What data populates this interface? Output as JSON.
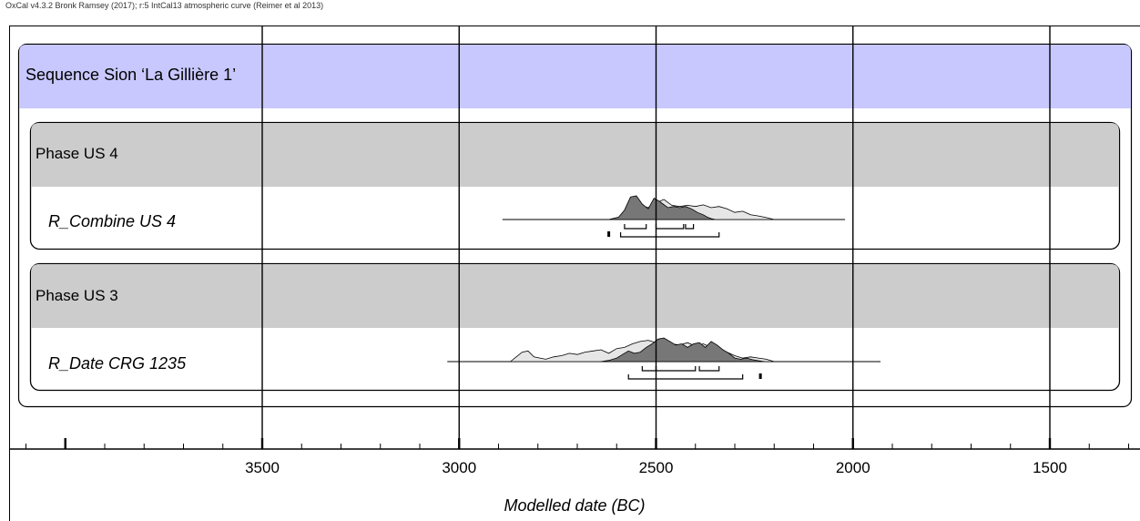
{
  "header_note": "OxCal v4.3.2 Bronk Ramsey (2017); r:5 IntCal13 atmospheric curve (Reimer et al 2013)",
  "chart_data": {
    "type": "ridge",
    "xlabel": "Modelled date (BC)",
    "xaxis_reversed": true,
    "xlim": [
      4100,
      1300
    ],
    "major_ticks": [
      3500,
      3000,
      2500,
      2000,
      1500
    ],
    "tick_labels": [
      "3500",
      "3000",
      "2500",
      "2000",
      "1500"
    ],
    "minor_tick_step": 100,
    "sequence": {
      "label": "Sequence Sion ‘La Gillière 1’",
      "color": "#c8c8ff"
    },
    "phases": [
      {
        "label": "Phase US 4",
        "color": "#cccccc",
        "item": {
          "label": "R_Combine US 4",
          "line_range": [
            2890,
            2020
          ],
          "prior": {
            "x": [
              2620,
              2595,
              2575,
              2560,
              2540,
              2520,
              2500,
              2480,
              2460,
              2440,
              2420,
              2400,
              2380,
              2360,
              2340,
              2320,
              2300,
              2280,
              2260,
              2240,
              2220,
              2200
            ],
            "y": [
              0,
              0.05,
              0.45,
              0.85,
              0.6,
              0.5,
              0.7,
              0.85,
              0.6,
              0.55,
              0.6,
              0.55,
              0.62,
              0.5,
              0.55,
              0.45,
              0.3,
              0.35,
              0.2,
              0.15,
              0.08,
              0
            ]
          },
          "posterior": {
            "x": [
              2620,
              2595,
              2580,
              2565,
              2550,
              2535,
              2520,
              2505,
              2490,
              2470,
              2455,
              2440,
              2425,
              2410,
              2395,
              2380,
              2370,
              2360,
              2350
            ],
            "y": [
              0,
              0.1,
              0.4,
              0.95,
              1.0,
              0.65,
              0.45,
              0.9,
              0.75,
              0.5,
              0.55,
              0.5,
              0.55,
              0.45,
              0.3,
              0.2,
              0.1,
              0.04,
              0
            ]
          },
          "ranges_68": [
            [
              2580,
              2525
            ],
            [
              2500,
              2430
            ],
            [
              2425,
              2405
            ]
          ],
          "ranges_95": [
            [
              2625,
              2615
            ],
            [
              2590,
              2340
            ]
          ]
        }
      },
      {
        "label": "Phase US 3",
        "color": "#cccccc",
        "item": {
          "label": "R_Date CRG 1235",
          "line_range": [
            3030,
            1930
          ],
          "prior": {
            "x": [
              2870,
              2855,
              2840,
              2825,
              2810,
              2795,
              2780,
              2760,
              2740,
              2720,
              2700,
              2680,
              2660,
              2640,
              2620,
              2600,
              2580,
              2560,
              2540,
              2520,
              2500,
              2480,
              2460,
              2440,
              2420,
              2400,
              2380,
              2360,
              2340,
              2320,
              2300,
              2280,
              2260,
              2240,
              2220,
              2200
            ],
            "y": [
              0,
              0.2,
              0.4,
              0.45,
              0.2,
              0.15,
              0.1,
              0.2,
              0.25,
              0.35,
              0.3,
              0.4,
              0.45,
              0.5,
              0.35,
              0.55,
              0.6,
              0.75,
              0.85,
              0.9,
              0.8,
              0.95,
              0.75,
              0.7,
              0.8,
              0.65,
              0.75,
              0.6,
              0.55,
              0.4,
              0.25,
              0.15,
              0.2,
              0.15,
              0.1,
              0
            ]
          },
          "posterior": {
            "x": [
              2640,
              2620,
              2600,
              2585,
              2570,
              2555,
              2540,
              2525,
              2510,
              2495,
              2480,
              2465,
              2450,
              2435,
              2420,
              2405,
              2390,
              2375,
              2360,
              2345,
              2330,
              2315,
              2300,
              2285,
              2270,
              2255,
              2240,
              2225
            ],
            "y": [
              0,
              0.05,
              0.15,
              0.3,
              0.45,
              0.35,
              0.4,
              0.6,
              0.75,
              0.95,
              1.0,
              0.85,
              0.7,
              0.75,
              0.6,
              0.75,
              0.8,
              0.6,
              0.85,
              0.7,
              0.5,
              0.35,
              0.15,
              0.1,
              0.15,
              0.08,
              0.04,
              0
            ]
          },
          "ranges_68": [
            [
              2535,
              2500
            ],
            [
              2500,
              2400
            ],
            [
              2390,
              2340
            ]
          ],
          "ranges_95": [
            [
              2570,
              2280
            ],
            [
              2240,
              2230
            ]
          ]
        }
      }
    ]
  }
}
